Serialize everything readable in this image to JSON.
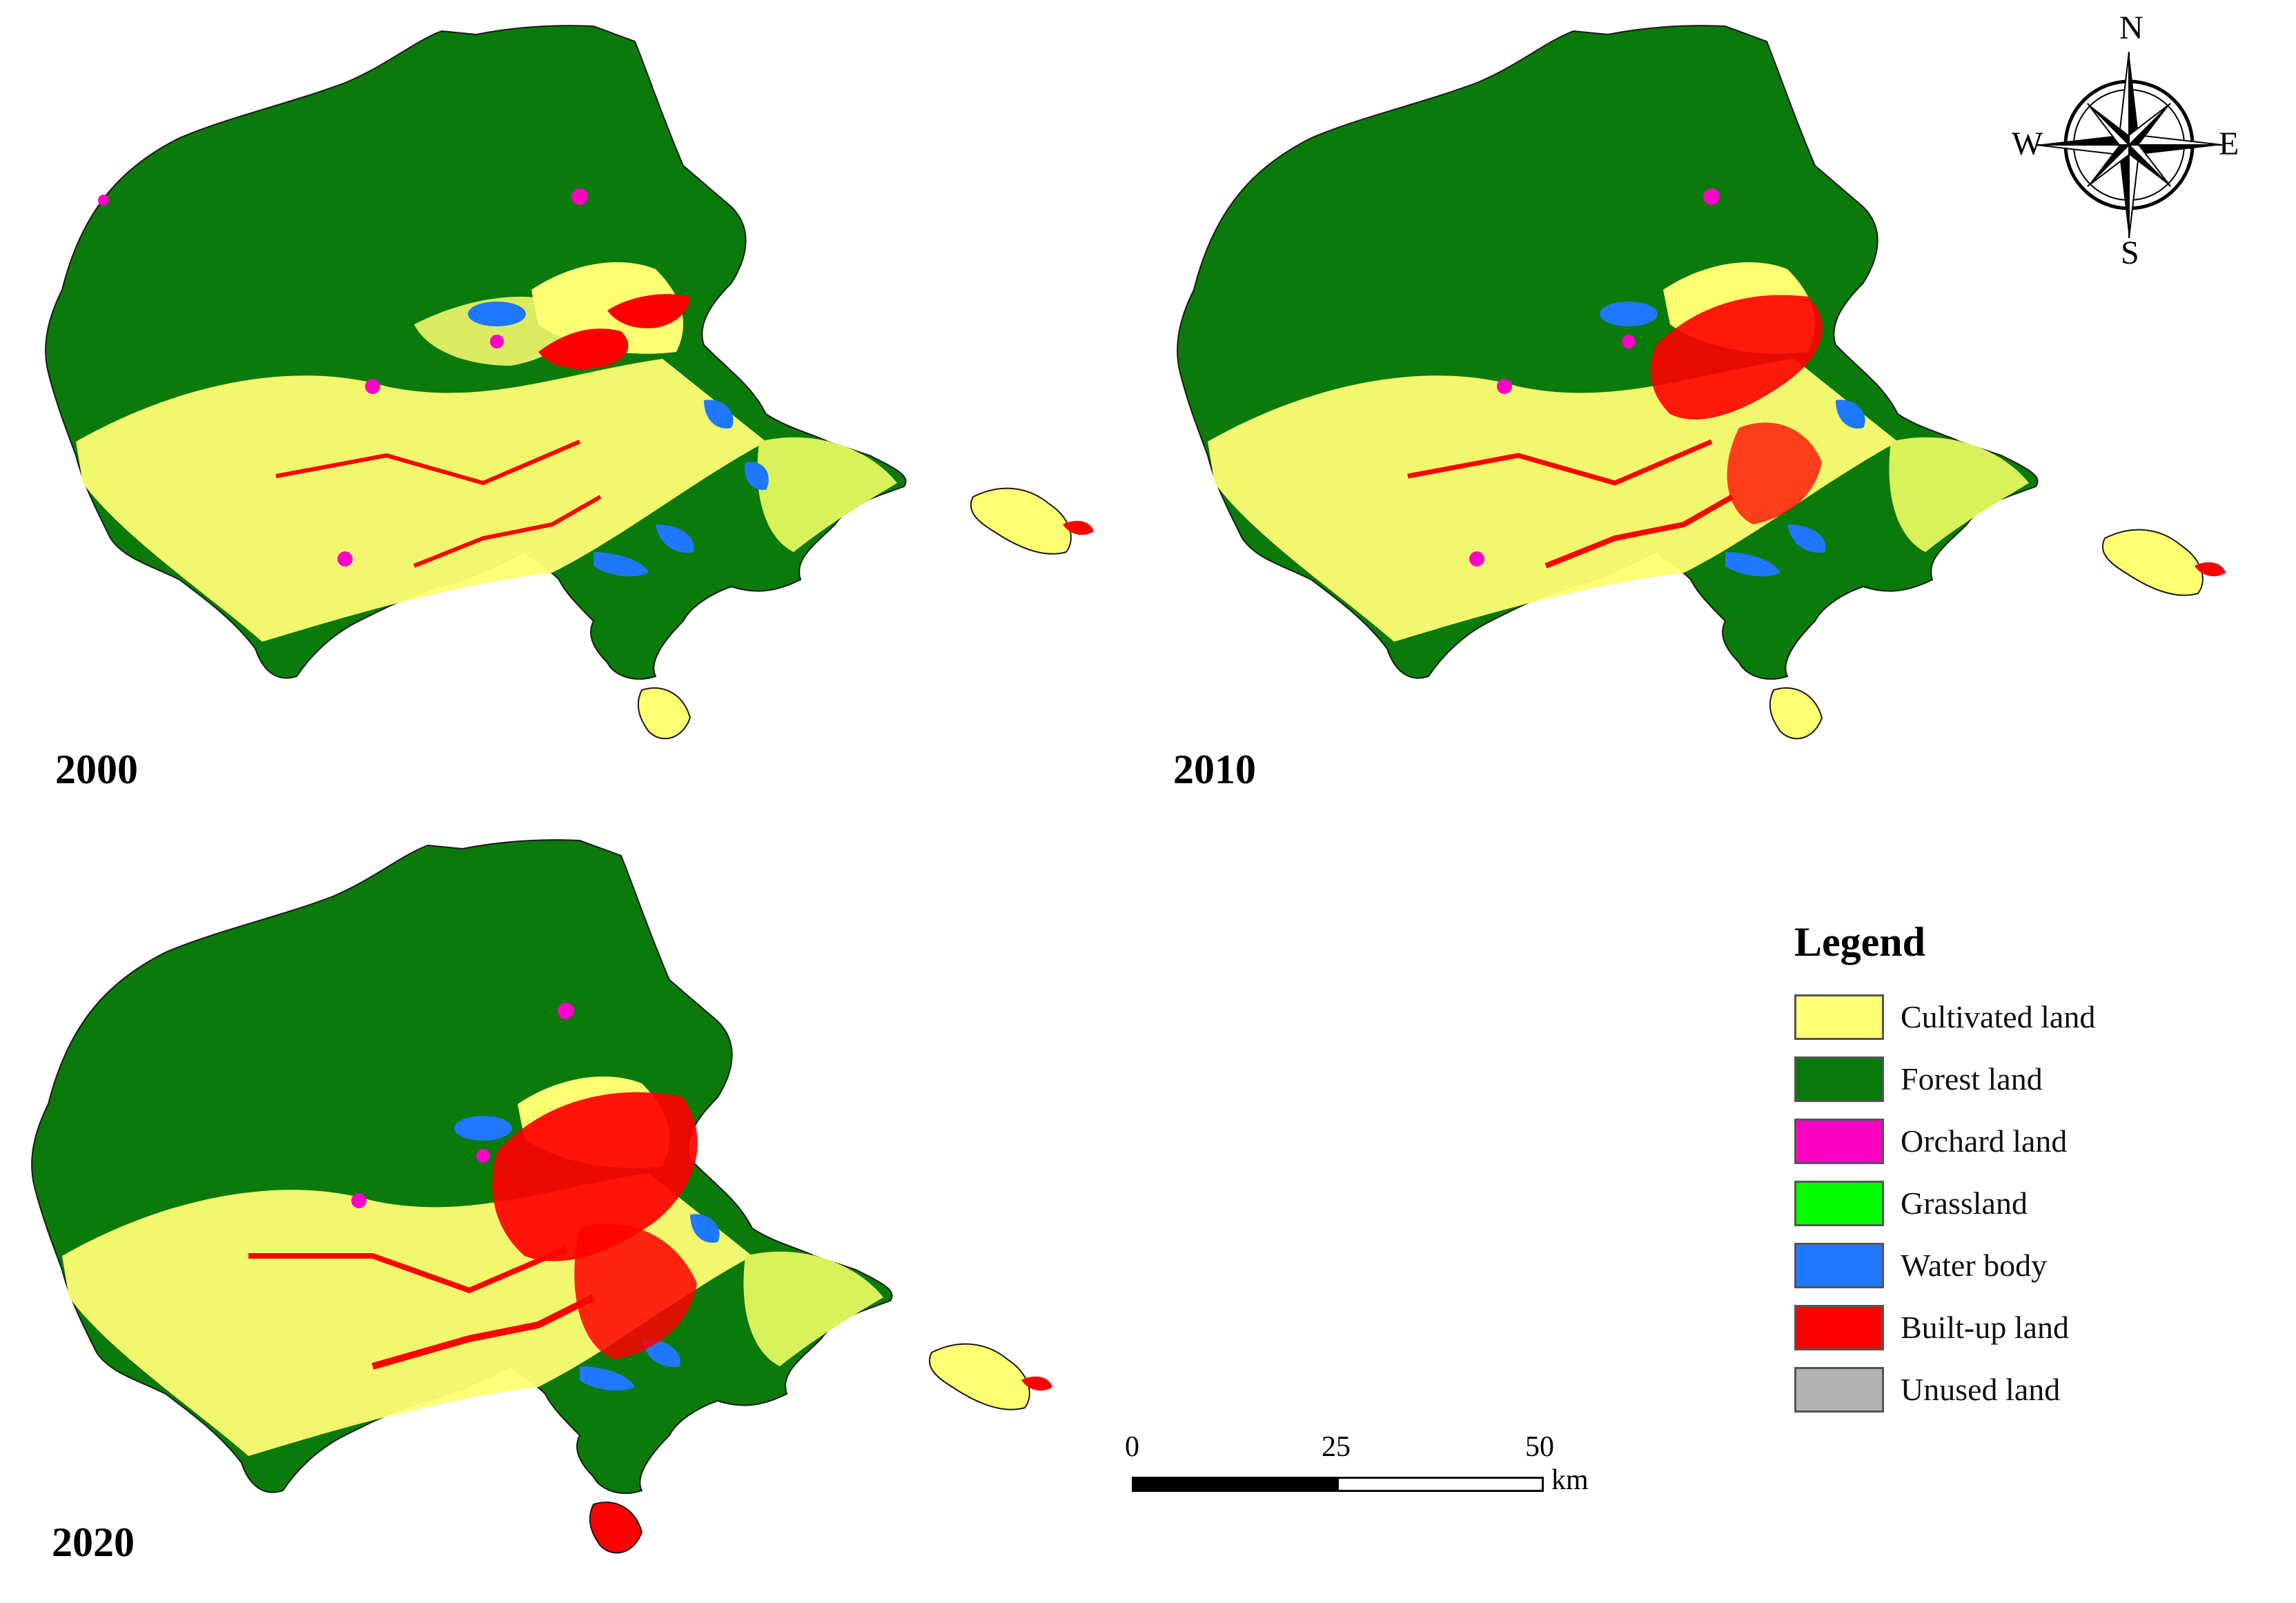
{
  "panels": [
    {
      "year": "2000"
    },
    {
      "year": "2010"
    },
    {
      "year": "2020"
    }
  ],
  "legend": {
    "title": "Legend",
    "items": [
      {
        "label": "Cultivated land",
        "color": "#FFFF73"
      },
      {
        "label": "Forest land",
        "color": "#0A7A0A"
      },
      {
        "label": "Orchard land",
        "color": "#FF00C5"
      },
      {
        "label": "Grassland",
        "color": "#00FF00"
      },
      {
        "label": "Water body",
        "color": "#1F78FF"
      },
      {
        "label": "Built-up land",
        "color": "#FF0000"
      },
      {
        "label": "Unused land",
        "color": "#B2B2B2"
      }
    ]
  },
  "scale_bar": {
    "ticks": [
      "0",
      "25",
      "50"
    ],
    "unit": "km"
  },
  "north_arrow": {
    "n": "N",
    "s": "S",
    "e": "E",
    "w": "W"
  }
}
